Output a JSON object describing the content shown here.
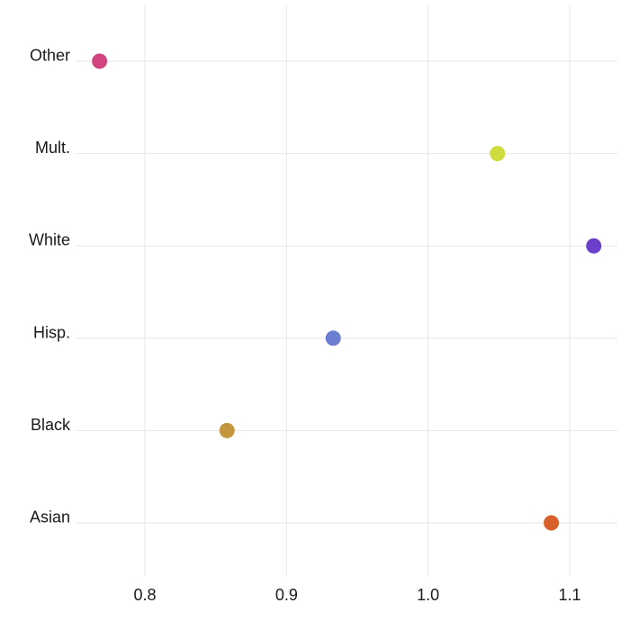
{
  "chart_data": {
    "type": "scatter",
    "title": "",
    "xlabel": "",
    "ylabel": "",
    "xlim": [
      0.75,
      1.135
    ],
    "x_ticks": [
      0.8,
      0.9,
      1.0,
      1.1
    ],
    "x_tick_labels": [
      "0.8",
      "0.9",
      "1.0",
      "1.1"
    ],
    "grid": true,
    "legend": "none",
    "categories": [
      "Asian",
      "Black",
      "Hisp.",
      "White",
      "Mult.",
      "Other"
    ],
    "points": [
      {
        "category": "Asian",
        "value": 1.087,
        "color": "#d95f2b"
      },
      {
        "category": "Black",
        "value": 0.858,
        "color": "#c4973f"
      },
      {
        "category": "Hisp.",
        "value": 0.933,
        "color": "#6b7ecf"
      },
      {
        "category": "White",
        "value": 1.117,
        "color": "#6a3fc9"
      },
      {
        "category": "Mult.",
        "value": 1.049,
        "color": "#cedd3c"
      },
      {
        "category": "Other",
        "value": 0.768,
        "color": "#d0457f"
      }
    ]
  }
}
